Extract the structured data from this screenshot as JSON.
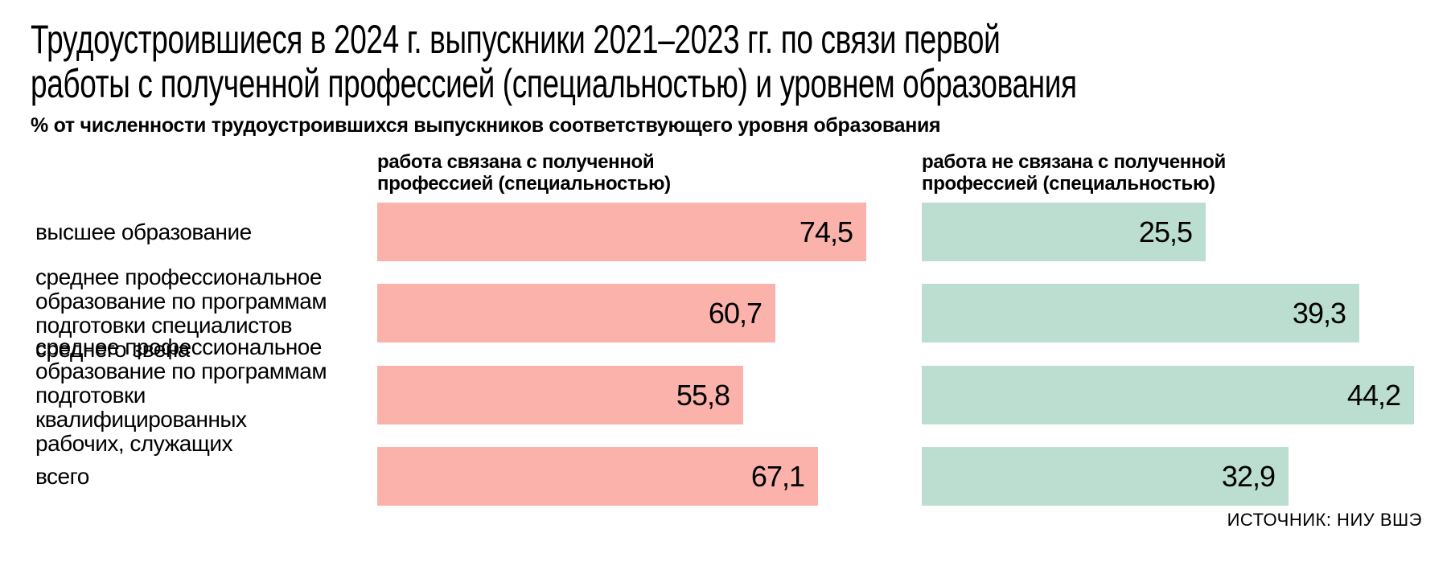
{
  "page": {
    "title": "Трудоустроившиеся в 2024 г. выпускники 2021–2023 гг. по связи первой\nработы с полученной профессией (специальностью) и уровнем образования",
    "subtitle": "% от численности трудоустроившихся выпускников соответствующего уровня образования",
    "source": "ИСТОЧНИК: НИУ ВШЭ"
  },
  "columns": {
    "related": {
      "header": "работа связана с полученной\nпрофессией (специальностью)"
    },
    "not_related": {
      "header": "работа не связана с полученной\nпрофессией (специальностью)"
    }
  },
  "rows": [
    {
      "label": "высшее образование",
      "related_display": "74,5",
      "not_related_display": "25,5"
    },
    {
      "label": "среднее профессиональное\nобразование по программам\nподготовки специалистов\nсреднего звена",
      "related_display": "60,7",
      "not_related_display": "39,3"
    },
    {
      "label": "среднее профессиональное\nобразование по программам\nподготовки квалифицированных\nрабочих, служащих",
      "related_display": "55,8",
      "not_related_display": "44,2"
    },
    {
      "label": "всего",
      "related_display": "67,1",
      "not_related_display": "32,9"
    }
  ],
  "colors": {
    "related_bar": "#fab2ab",
    "not_related_bar": "#bcded1",
    "text": "#000000",
    "background": "#ffffff"
  },
  "chart_data": {
    "type": "bar",
    "orientation": "horizontal",
    "title": "Трудоустроившиеся в 2024 г. выпускники 2021–2023 гг. по связи первой работы с полученной профессией (специальностью) и уровнем образования",
    "subtitle": "% от численности трудоустроившихся выпускников соответствующего уровня образования",
    "categories": [
      "высшее образование",
      "среднее профессиональное образование по программам подготовки специалистов среднего звена",
      "среднее профессиональное образование по программам подготовки квалифицированных рабочих, служащих",
      "всего"
    ],
    "series": [
      {
        "name": "работа связана с полученной профессией (специальностью)",
        "color": "#fab2ab",
        "values": [
          74.5,
          60.7,
          55.8,
          67.1
        ]
      },
      {
        "name": "работа не связана с полученной профессией (специальностью)",
        "color": "#bcded1",
        "values": [
          25.5,
          39.3,
          44.2,
          32.9
        ]
      }
    ],
    "value_labels_position": "inside-end",
    "value_format": "comma-decimal",
    "left_panel_max": 74.5,
    "right_panel_max": 44.2,
    "grid": false,
    "legend_position": "column-headers-above-bars",
    "source": "ИСТОЧНИК: НИУ ВШЭ"
  }
}
